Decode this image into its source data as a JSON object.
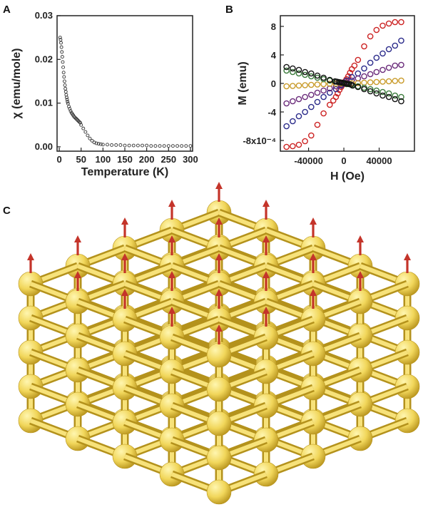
{
  "panels": {
    "a": "A",
    "b": "B",
    "c": "C"
  },
  "chart_data": [
    {
      "panel": "A",
      "type": "scatter",
      "xlabel": "Temperature (K)",
      "ylabel": "χ (emu/mole)",
      "xlim": [
        -5,
        305
      ],
      "ylim": [
        -0.001,
        0.03
      ],
      "xticks": [
        0,
        50,
        100,
        150,
        200,
        250,
        300
      ],
      "yticks": [
        0.0,
        0.01,
        0.02,
        0.03
      ],
      "ytick_labels": [
        "0.00",
        "0.01",
        "0.02",
        "0.03"
      ],
      "marker": "open-circle",
      "color": "#333333",
      "series": [
        {
          "x": [
            2,
            3,
            4,
            5,
            6,
            7,
            8,
            9,
            10,
            11,
            12,
            13,
            14,
            15,
            16,
            17,
            18,
            19,
            20,
            22,
            24,
            26,
            28,
            30,
            32,
            34,
            36,
            38,
            40,
            42,
            44,
            46,
            48,
            50,
            55,
            60,
            65,
            70,
            75,
            80,
            85,
            90,
            95,
            100,
            110,
            120,
            130,
            140,
            150,
            160,
            170,
            180,
            190,
            200,
            210,
            220,
            230,
            240,
            250,
            260,
            270,
            280,
            290,
            300
          ],
          "y": [
            0.025,
            0.0245,
            0.0238,
            0.0228,
            0.0217,
            0.0206,
            0.0194,
            0.0182,
            0.017,
            0.016,
            0.015,
            0.0141,
            0.0133,
            0.0126,
            0.0119,
            0.0113,
            0.0108,
            0.0103,
            0.0099,
            0.0092,
            0.0087,
            0.0082,
            0.0078,
            0.0075,
            0.0072,
            0.0069,
            0.0067,
            0.0065,
            0.0063,
            0.0061,
            0.0059,
            0.0057,
            0.0055,
            0.005,
            0.0042,
            0.0034,
            0.0026,
            0.0019,
            0.0014,
            0.001,
            0.0008,
            0.0007,
            0.0006,
            0.0005,
            0.0005,
            0.0004,
            0.0004,
            0.0004,
            0.0003,
            0.0003,
            0.0003,
            0.0003,
            0.0003,
            0.0003,
            0.0002,
            0.0002,
            0.0002,
            0.0002,
            0.0002,
            0.0002,
            0.0002,
            0.0002,
            0.0002,
            0.0002
          ]
        }
      ]
    },
    {
      "panel": "B",
      "type": "scatter",
      "xlabel": "H (Oe)",
      "ylabel": "M (emu)",
      "xlim": [
        -72000,
        80000
      ],
      "ylim": [
        -9.5,
        9.5
      ],
      "xticks": [
        -40000,
        0,
        40000
      ],
      "xtick_labels": [
        "-40000",
        "0",
        "40000"
      ],
      "yticks": [
        -8,
        -4,
        0,
        4,
        8
      ],
      "ytick_labels": [
        "-8x10⁻⁴",
        "-4",
        "0",
        "4",
        "8"
      ],
      "marker": "open-circle",
      "series": [
        {
          "color": "#cc2222",
          "x": [
            -65000,
            -58000,
            -51000,
            -44000,
            -37000,
            -30000,
            -23000,
            -16000,
            -12000,
            -9000,
            -7000,
            -5000,
            -3000,
            -1500,
            0,
            1500,
            3000,
            5000,
            7000,
            9000,
            12000,
            16000,
            23000,
            30000,
            37000,
            44000,
            51000,
            58000,
            65000
          ],
          "y": [
            -8.9,
            -8.8,
            -8.6,
            -8.1,
            -7.3,
            -5.8,
            -4.2,
            -3.0,
            -2.4,
            -1.9,
            -1.4,
            -0.9,
            -0.5,
            -0.2,
            0.0,
            0.3,
            0.6,
            1.0,
            1.5,
            2.0,
            2.5,
            3.3,
            5.2,
            6.6,
            7.5,
            8.1,
            8.4,
            8.6,
            8.6
          ]
        },
        {
          "color": "#2a2a8a",
          "x": [
            -65000,
            -58000,
            -51000,
            -44000,
            -37000,
            -30000,
            -23000,
            -16000,
            -9000,
            -3000,
            3000,
            9000,
            16000,
            23000,
            30000,
            37000,
            44000,
            51000,
            58000,
            65000
          ],
          "y": [
            -6.0,
            -5.3,
            -4.6,
            -4.0,
            -3.3,
            -2.6,
            -1.9,
            -1.3,
            -0.8,
            -0.3,
            0.4,
            0.9,
            1.4,
            2.1,
            2.9,
            3.6,
            4.2,
            4.8,
            5.3,
            6.0
          ]
        },
        {
          "color": "#6a2a7a",
          "x": [
            -65000,
            -58000,
            -51000,
            -44000,
            -37000,
            -30000,
            -23000,
            -16000,
            -9000,
            -3000,
            3000,
            9000,
            16000,
            23000,
            30000,
            37000,
            44000,
            51000,
            58000,
            65000
          ],
          "y": [
            -2.8,
            -2.5,
            -2.2,
            -1.9,
            -1.6,
            -1.3,
            -1.0,
            -0.7,
            -0.4,
            -0.15,
            0.15,
            0.4,
            0.7,
            1.0,
            1.3,
            1.6,
            1.9,
            2.2,
            2.5,
            2.6
          ]
        },
        {
          "color": "#c89a28",
          "x": [
            -65000,
            -58000,
            -51000,
            -44000,
            -37000,
            -30000,
            -23000,
            -16000,
            -9000,
            -3000,
            3000,
            9000,
            16000,
            23000,
            30000,
            37000,
            44000,
            51000,
            58000,
            65000
          ],
          "y": [
            -0.4,
            -0.35,
            -0.3,
            -0.25,
            -0.2,
            -0.15,
            -0.1,
            -0.05,
            -0.02,
            0.0,
            0.0,
            0.02,
            0.05,
            0.1,
            0.15,
            0.2,
            0.25,
            0.3,
            0.35,
            0.4
          ]
        },
        {
          "color": "#3a7a3a",
          "x": [
            -65000,
            -58000,
            -51000,
            -44000,
            -37000,
            -30000,
            -23000,
            -16000,
            -9000,
            -3000,
            3000,
            9000,
            16000,
            23000,
            30000,
            37000,
            44000,
            51000,
            58000,
            65000
          ],
          "y": [
            1.8,
            1.6,
            1.4,
            1.2,
            1.0,
            0.8,
            0.6,
            0.4,
            0.25,
            0.1,
            -0.1,
            -0.25,
            -0.4,
            -0.6,
            -0.8,
            -1.0,
            -1.2,
            -1.4,
            -1.7,
            -1.9
          ]
        },
        {
          "color": "#111111",
          "x": [
            -65000,
            -58000,
            -51000,
            -44000,
            -37000,
            -30000,
            -23000,
            -16000,
            -10000,
            -8000,
            -6000,
            -4000,
            -2000,
            0,
            2000,
            4000,
            6000,
            8000,
            10000,
            16000,
            23000,
            30000,
            37000,
            44000,
            51000,
            58000,
            65000
          ],
          "y": [
            2.3,
            2.1,
            1.9,
            1.6,
            1.4,
            1.1,
            0.8,
            0.5,
            0.3,
            0.25,
            0.2,
            0.15,
            0.1,
            0.05,
            0.0,
            -0.05,
            -0.1,
            -0.15,
            -0.3,
            -0.5,
            -0.8,
            -1.1,
            -1.4,
            -1.7,
            -1.9,
            -2.2,
            -2.5
          ]
        }
      ]
    }
  ],
  "colors": {
    "sphere_light": "#fff6b0",
    "sphere_mid": "#f1d65a",
    "sphere_dark": "#b8941d",
    "rod_light": "#f7e27a",
    "rod_dark": "#b4921c",
    "arrow": "#c4342a"
  },
  "lattice": {
    "size": 5,
    "spin_direction": "up"
  }
}
